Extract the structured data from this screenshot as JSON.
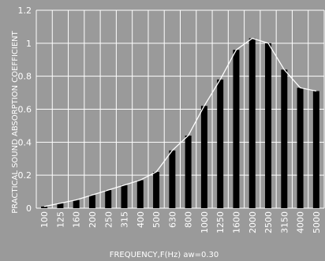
{
  "chart_data": {
    "type": "bar",
    "categories": [
      "100",
      "125",
      "160",
      "200",
      "250",
      "315",
      "400",
      "500",
      "630",
      "800",
      "1000",
      "1250",
      "1600",
      "2000",
      "2500",
      "3150",
      "4000",
      "5000"
    ],
    "values": [
      0.01,
      0.03,
      0.05,
      0.08,
      0.11,
      0.14,
      0.17,
      0.22,
      0.35,
      0.44,
      0.62,
      0.78,
      0.96,
      1.03,
      1.0,
      0.84,
      0.73,
      0.71
    ],
    "line_values": [
      0.01,
      0.03,
      0.05,
      0.08,
      0.11,
      0.14,
      0.17,
      0.22,
      0.35,
      0.44,
      0.62,
      0.78,
      0.96,
      1.03,
      1.0,
      0.84,
      0.73,
      0.71
    ],
    "xlabel": "FREQUENCY,F(Hz)  aw=0.30",
    "ylabel": "PRACTICAL SOUND ABSORPTION COEFFICIENT",
    "ylim": [
      0,
      1.2
    ],
    "yticks": [
      "0",
      "0.2",
      "0.4",
      "0.6",
      "0.8",
      "1",
      "1.2"
    ],
    "grid": true,
    "colors": {
      "background": "#9a9a9a",
      "bar": "#000000",
      "line": "#ffffff",
      "grid": "#ffffff",
      "text": "#ffffff"
    }
  }
}
